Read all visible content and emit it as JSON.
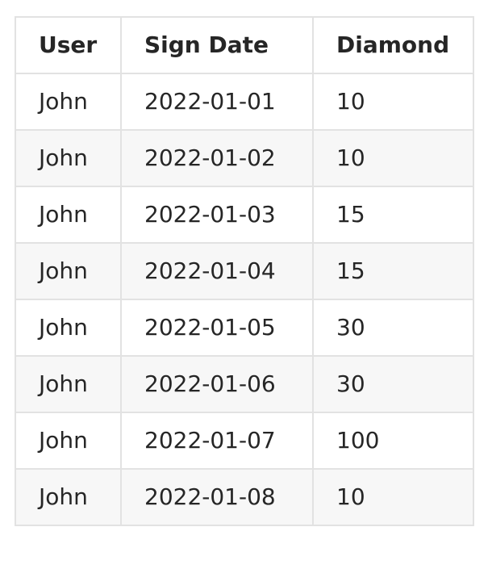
{
  "table": {
    "headers": [
      "User",
      "Sign Date",
      "Diamond"
    ],
    "rows": [
      [
        "John",
        "2022-01-01",
        "10"
      ],
      [
        "John",
        "2022-01-02",
        "10"
      ],
      [
        "John",
        "2022-01-03",
        "15"
      ],
      [
        "John",
        "2022-01-04",
        "15"
      ],
      [
        "John",
        "2022-01-05",
        "30"
      ],
      [
        "John",
        "2022-01-06",
        "30"
      ],
      [
        "John",
        "2022-01-07",
        "100"
      ],
      [
        "John",
        "2022-01-08",
        "10"
      ]
    ]
  },
  "colors": {
    "border": "#e2e2e2",
    "stripe": "#f7f7f7",
    "text": "#262626"
  }
}
